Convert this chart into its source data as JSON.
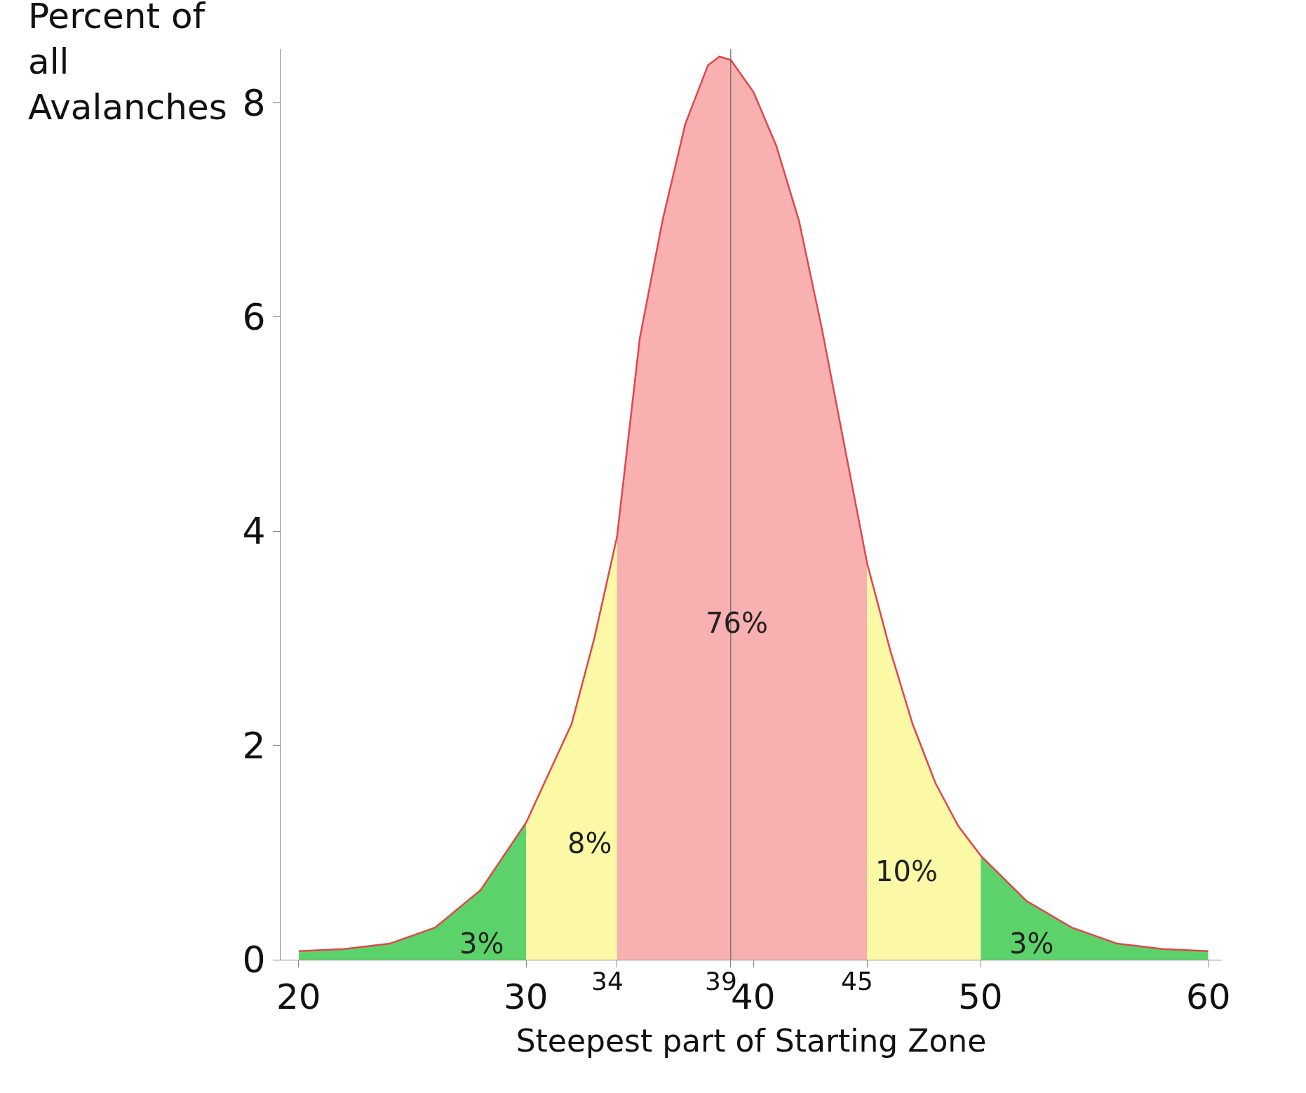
{
  "chart_data": {
    "type": "area",
    "xlabel": "Steepest part of Starting Zone",
    "ylabel": "Percent of all Avalanches",
    "series": [
      {
        "color": "#5cd36a",
        "x": [
          20,
          22,
          24,
          26,
          28,
          30
        ],
        "values": [
          0.08,
          0.1,
          0.15,
          0.3,
          0.65,
          1.28
        ]
      },
      {
        "color": "#fbf8a6",
        "x": [
          30,
          32,
          33,
          34
        ],
        "values": [
          1.28,
          2.2,
          3.0,
          3.95
        ]
      },
      {
        "color": "#f9b0b0",
        "x": [
          34,
          35,
          36,
          37,
          38,
          38.5,
          39,
          40,
          41,
          42,
          43,
          44,
          45
        ],
        "values": [
          3.95,
          5.8,
          6.9,
          7.8,
          8.35,
          8.43,
          8.4,
          8.1,
          7.6,
          6.9,
          5.9,
          4.8,
          3.7
        ]
      },
      {
        "color": "#fbf8a6",
        "x": [
          45,
          46,
          47,
          48,
          49,
          50
        ],
        "values": [
          3.7,
          2.9,
          2.2,
          1.65,
          1.25,
          0.97
        ]
      },
      {
        "color": "#5cd36a",
        "x": [
          50,
          52,
          54,
          56,
          58,
          60
        ],
        "values": [
          0.97,
          0.55,
          0.3,
          0.15,
          0.1,
          0.08
        ]
      },
      {
        "type": "line",
        "color": "#e0474c",
        "x": [
          20,
          22,
          24,
          26,
          28,
          30,
          32,
          33,
          34,
          35,
          36,
          37,
          38,
          38.5,
          39,
          40,
          41,
          42,
          43,
          44,
          45,
          46,
          47,
          48,
          49,
          50,
          52,
          54,
          56,
          58,
          60
        ],
        "values": [
          0.08,
          0.1,
          0.15,
          0.3,
          0.65,
          1.28,
          2.2,
          3.0,
          3.95,
          5.8,
          6.9,
          7.8,
          8.35,
          8.43,
          8.4,
          8.1,
          7.6,
          6.9,
          5.9,
          4.8,
          3.7,
          2.9,
          2.2,
          1.65,
          1.25,
          0.97,
          0.55,
          0.3,
          0.15,
          0.1,
          0.08
        ]
      }
    ],
    "ref_lines": [
      {
        "axis": "x",
        "value": 39,
        "color": "#555555"
      }
    ],
    "annotations": [
      "3%",
      "8%",
      "76%",
      "10%",
      "3%"
    ],
    "xlim": [
      19.2,
      60.6
    ],
    "xticks": [
      20,
      30,
      34,
      39,
      40,
      45,
      50,
      60
    ],
    "ylim": [
      0,
      8.5
    ],
    "yticks": [
      0,
      2,
      4,
      6,
      8
    ],
    "tick_labels": true
  }
}
